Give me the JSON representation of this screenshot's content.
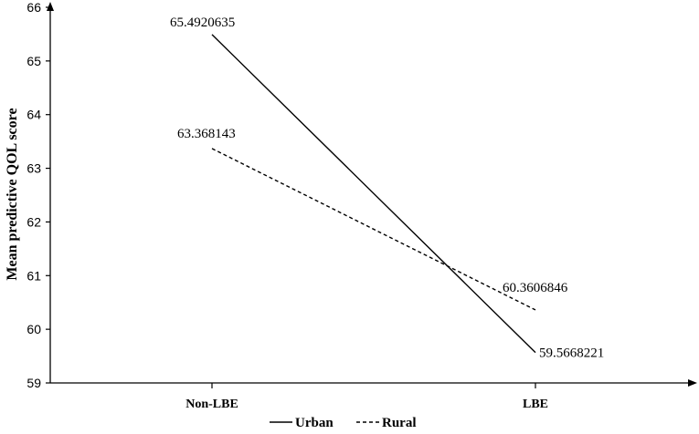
{
  "chart_data": {
    "type": "line",
    "title": "",
    "xlabel": "",
    "ylabel": "Mean predictive QOL score",
    "categories": [
      "Non-LBE",
      "LBE"
    ],
    "ylim": [
      59,
      66
    ],
    "yticks": [
      59,
      60,
      61,
      62,
      63,
      64,
      65,
      66
    ],
    "ytick_labels": [
      "59",
      "60",
      "61",
      "62",
      "63",
      "64",
      "65",
      "66"
    ],
    "grid": false,
    "legend_position": "bottom",
    "series": [
      {
        "name": "Urban",
        "style": "solid",
        "color": "#000000",
        "values": [
          65.4920635,
          59.5668221
        ],
        "labels": [
          "65.4920635",
          "59.5668221"
        ]
      },
      {
        "name": "Rural",
        "style": "dashed",
        "color": "#000000",
        "values": [
          63.368143,
          60.3606846
        ],
        "labels": [
          "63.368143",
          "60.3606846"
        ]
      }
    ]
  }
}
